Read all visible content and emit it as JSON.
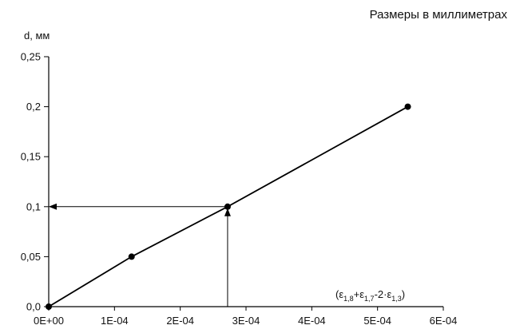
{
  "caption": "Размеры в миллиметрах",
  "chart_data": {
    "type": "line",
    "ylabel": "d, мм",
    "xlabel_parts": {
      "open": "(",
      "sym1": "ε",
      "sub1": "1,8",
      "plus": "+",
      "sym2": "ε",
      "sub2": "1,7",
      "minus": "-2·",
      "sym3": "ε",
      "sub3": "1,3",
      "close": ")"
    },
    "xlim": [
      0,
      0.0006
    ],
    "ylim": [
      0,
      0.25
    ],
    "x_ticks": [
      0,
      0.0001,
      0.0002,
      0.0003,
      0.0004,
      0.0005,
      0.0006
    ],
    "x_tick_labels": [
      "0E+00",
      "1E-04",
      "2E-04",
      "3E-04",
      "4E-04",
      "5E-04",
      "6E-04"
    ],
    "y_ticks": [
      0,
      0.05,
      0.1,
      0.15,
      0.2,
      0.25
    ],
    "y_tick_labels": [
      "0,0",
      "0,05",
      "0,1",
      "0,15",
      "0,2",
      "0,25"
    ],
    "grid": false,
    "series": [
      {
        "x": [
          0,
          0.000126,
          0.000272,
          0.000546
        ],
        "y": [
          0,
          0.05,
          0.1,
          0.2
        ],
        "color": "#000000"
      }
    ],
    "annotation": {
      "x": 0.000272,
      "y": 0.1,
      "description_arrows": [
        "vertical-up",
        "horizontal-left"
      ]
    }
  }
}
